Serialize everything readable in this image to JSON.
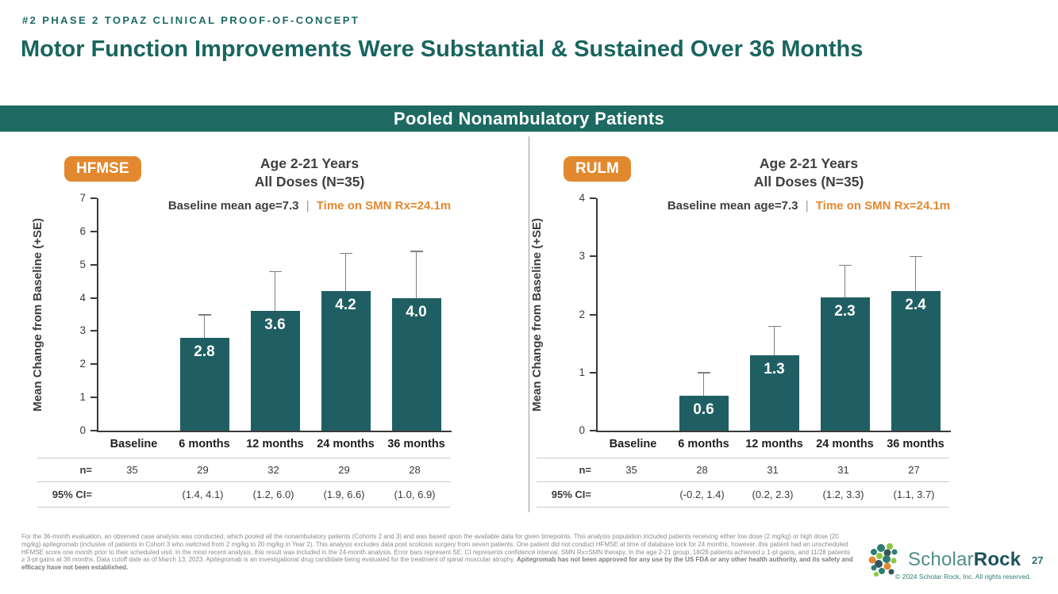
{
  "header": {
    "eyebrow": "#2 PHASE 2 TOPAZ CLINICAL PROOF-OF-CONCEPT",
    "title": "Motor Function Improvements Were Substantial & Sustained Over 36 Months"
  },
  "banner": {
    "label": "Pooled Nonambulatory Patients"
  },
  "colors": {
    "teal_heading": "#19655F",
    "banner_bg": "#1E6A63",
    "bar_fill": "#1F5F64",
    "accent_orange": "#E2892F",
    "dark_text": "#3F3F3F",
    "error_bar_gray": "#7f7f7f",
    "footnote_gray": "#8C8C8C"
  },
  "chart_data": [
    {
      "type": "bar",
      "panel": "hfmse",
      "badge": "HFMSE",
      "title_line1": "Age 2-21 Years",
      "title_line2": "All Doses (N=35)",
      "subtitle_left": "Baseline mean age=7.3",
      "subtitle_sep": "|",
      "subtitle_right": "Time on SMN Rx=24.1m",
      "ylabel": "Mean Change from Baseline (+SE)",
      "ylim": [
        0,
        7
      ],
      "ytick_step": 1,
      "grid": false,
      "categories": [
        "Baseline",
        "6 months",
        "12 months",
        "24 months",
        "36 months"
      ],
      "values": [
        0,
        2.8,
        3.6,
        4.2,
        4.0
      ],
      "labels": [
        "",
        "2.8",
        "3.6",
        "4.2",
        "4.0"
      ],
      "error_top": [
        null,
        3.5,
        4.8,
        5.35,
        5.4
      ],
      "table": {
        "rows": [
          {
            "label": "n=",
            "cells": [
              "35",
              "29",
              "32",
              "29",
              "28"
            ]
          },
          {
            "label": "95% CI=",
            "cells": [
              "",
              "(1.4, 4.1)",
              "(1.2, 6.0)",
              "(1.9, 6.6)",
              "(1.0, 6.9)"
            ]
          }
        ]
      }
    },
    {
      "type": "bar",
      "panel": "rulm",
      "badge": "RULM",
      "title_line1": "Age 2-21 Years",
      "title_line2": "All Doses (N=35)",
      "subtitle_left": "Baseline mean age=7.3",
      "subtitle_sep": "|",
      "subtitle_right": "Time on SMN Rx=24.1m",
      "ylabel": "Mean Change from Baseline (+SE)",
      "ylim": [
        0,
        4
      ],
      "ytick_step": 1,
      "grid": false,
      "categories": [
        "Baseline",
        "6 months",
        "12 months",
        "24 months",
        "36 months"
      ],
      "values": [
        0,
        0.6,
        1.3,
        2.3,
        2.4
      ],
      "labels": [
        "",
        "0.6",
        "1.3",
        "2.3",
        "2.4"
      ],
      "error_top": [
        null,
        1.0,
        1.8,
        2.85,
        3.0
      ],
      "table": {
        "rows": [
          {
            "label": "n=",
            "cells": [
              "35",
              "28",
              "31",
              "31",
              "27"
            ]
          },
          {
            "label": "95% CI=",
            "cells": [
              "",
              "(-0.2, 1.4)",
              "(0.2, 2.3)",
              "(1.2, 3.3)",
              "(1.1, 3.7)"
            ]
          }
        ]
      }
    }
  ],
  "footnote": {
    "normal": "For the 36-month evaluation, an observed case analysis was conducted, which pooled all the nonambulatory patients (Cohorts 2 and 3) and was based upon the available data for given timepoints. This analysis population included patients receiving either low dose (2 mg/kg) or high dose (20 mg/kg) apitegromab (inclusive of patients in Cohort 3 who switched from 2 mg/kg to 20 mg/kg in Year 2). This analysis excludes data post scoliosis surgery from seven patients. One patient did not conduct HFMSE at time of database lock for 24 months, however, this patient had an unscheduled HFMSE score one month prior to their scheduled visit. In the most recent analysis, this result was included in the 24-month analysis. Error bars represent SE. CI represents confidence interval. SMN Rx=SMN therapy. In the age 2-21 group, 18/28 patients achieved ≥ 1-pt gains, and 11/28 patients ≥ 3-pt gains at 36 months. Data cutoff date as of March 13, 2023. Apitegromab is an investigational drug candidate being evaluated for the treatment of spinal muscular atrophy. ",
    "bold": "Apitegromab has not been approved for any use by the US FDA or any other health authority, and its safety and efficacy have not been established."
  },
  "footer": {
    "logo_icon": "scholar-rock-dots-logo",
    "logo_word1": "Scholar",
    "logo_word2": "Rock",
    "copyright": "© 2024 Scholar Rock, Inc. All rights reserved.",
    "page_number": "27"
  }
}
